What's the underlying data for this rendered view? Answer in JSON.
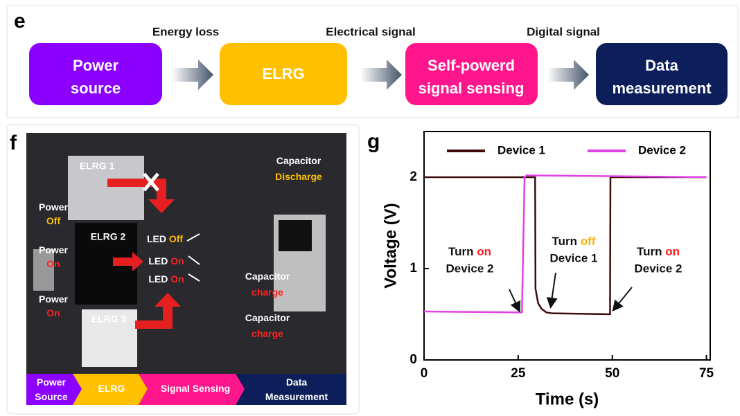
{
  "panel_e": {
    "label": "e",
    "arrows": [
      "Energy loss",
      "Electrical signal",
      "Digital signal"
    ],
    "boxes": [
      [
        "Power",
        "source"
      ],
      [
        "ELRG"
      ],
      [
        "Self-powerd",
        "signal sensing"
      ],
      [
        "Data",
        "measurement"
      ]
    ]
  },
  "panel_f": {
    "label": "f",
    "elrg": [
      "ELRG 1",
      "ELRG 2",
      "ELRG 3"
    ],
    "power": [
      {
        "text": "Power",
        "state": "Off"
      },
      {
        "text": "Power",
        "state": "On"
      },
      {
        "text": "Power",
        "state": "On"
      }
    ],
    "led": [
      {
        "text": "LED",
        "state": "Off"
      },
      {
        "text": "LED",
        "state": "On"
      },
      {
        "text": "LED",
        "state": "On"
      }
    ],
    "capacitor": [
      {
        "text": "Capacitor",
        "state": "Discharge"
      },
      {
        "text": "Capacitor",
        "state": "charge"
      },
      {
        "text": "Capacitor",
        "state": "charge"
      }
    ],
    "flow": [
      [
        "Power",
        "Source"
      ],
      [
        "ELRG"
      ],
      [
        "Signal Sensing"
      ],
      [
        "Data",
        "Measurement"
      ]
    ]
  },
  "panel_g": {
    "label": "g"
  },
  "chart_data": {
    "type": "line",
    "x_label": "Time (s)",
    "y_label": "Voltage (V)",
    "xlim": [
      0,
      76
    ],
    "ylim": [
      0,
      2.5
    ],
    "xticks": [
      0,
      25,
      50,
      75
    ],
    "yticks": [
      0,
      1,
      2
    ],
    "legend": "top",
    "series": [
      {
        "name": "Device 1",
        "color": "#3d0b0b",
        "x": [
          0,
          29.5,
          29.6,
          30.3,
          31.2,
          32.5,
          34,
          49.4,
          49.5,
          75
        ],
        "values": [
          2,
          2,
          0.78,
          0.62,
          0.56,
          0.52,
          0.51,
          0.5,
          2,
          2
        ]
      },
      {
        "name": "Device 2",
        "color": "#e040e6",
        "x": [
          0,
          26,
          26.7,
          27.3,
          75
        ],
        "values": [
          0.53,
          0.52,
          2,
          2.02,
          2
        ]
      }
    ],
    "annotations": [
      {
        "text": "Turn",
        "state": "on",
        "device": "Device 2"
      },
      {
        "text": "Turn",
        "state": "off",
        "device": "Device 1"
      },
      {
        "text": "Turn",
        "state": "on",
        "device": "Device 2"
      }
    ]
  }
}
